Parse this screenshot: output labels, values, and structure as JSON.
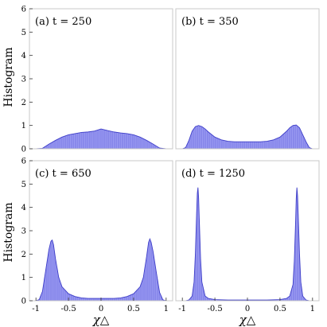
{
  "figure": {
    "ylabel": "Histogram",
    "xlabel": "χ△"
  },
  "chart_data": [
    {
      "type": "area",
      "panel_label": "(a) t = 250",
      "ylabel": "Histogram",
      "xlabel": "",
      "xlim": [
        -1.1,
        1.1
      ],
      "ylim": [
        0,
        6
      ],
      "xticks": [],
      "yticks": [
        0,
        1,
        2,
        3,
        4,
        5,
        6
      ],
      "x": [
        -1.0,
        -0.9,
        -0.8,
        -0.7,
        -0.6,
        -0.5,
        -0.4,
        -0.3,
        -0.2,
        -0.1,
        0.0,
        0.1,
        0.2,
        0.3,
        0.4,
        0.5,
        0.6,
        0.7,
        0.8,
        0.9,
        1.0
      ],
      "y": [
        0.0,
        0.02,
        0.2,
        0.36,
        0.5,
        0.6,
        0.65,
        0.7,
        0.72,
        0.76,
        0.85,
        0.78,
        0.72,
        0.68,
        0.65,
        0.6,
        0.5,
        0.36,
        0.2,
        0.03,
        0.0
      ]
    },
    {
      "type": "area",
      "panel_label": "(b) t = 350",
      "ylabel": "",
      "xlabel": "",
      "xlim": [
        -1.1,
        1.1
      ],
      "ylim": [
        0,
        6
      ],
      "xticks": [],
      "yticks": [],
      "x": [
        -1.0,
        -0.95,
        -0.9,
        -0.85,
        -0.8,
        -0.75,
        -0.7,
        -0.65,
        -0.6,
        -0.5,
        -0.4,
        -0.3,
        -0.2,
        -0.1,
        0.0,
        0.1,
        0.2,
        0.3,
        0.4,
        0.5,
        0.6,
        0.65,
        0.7,
        0.75,
        0.8,
        0.85,
        0.9,
        0.95,
        1.0
      ],
      "y": [
        0.0,
        0.05,
        0.35,
        0.75,
        0.95,
        1.0,
        0.95,
        0.85,
        0.72,
        0.5,
        0.38,
        0.32,
        0.3,
        0.3,
        0.3,
        0.3,
        0.3,
        0.32,
        0.38,
        0.5,
        0.75,
        0.9,
        1.0,
        1.02,
        0.9,
        0.6,
        0.3,
        0.05,
        0.0
      ]
    },
    {
      "type": "area",
      "panel_label": "(c) t = 650",
      "ylabel": "Histogram",
      "xlabel": "χ△",
      "xlim": [
        -1.1,
        1.1
      ],
      "ylim": [
        0,
        6
      ],
      "xticks": [
        -1,
        -0.5,
        0,
        0.5,
        1
      ],
      "xticklabels": [
        "-1",
        "-0.5",
        "0",
        "0.5",
        "1"
      ],
      "yticks": [
        0,
        1,
        2,
        3,
        4,
        5,
        6
      ],
      "x": [
        -1.0,
        -0.95,
        -0.9,
        -0.85,
        -0.8,
        -0.77,
        -0.75,
        -0.73,
        -0.7,
        -0.65,
        -0.6,
        -0.5,
        -0.4,
        -0.3,
        -0.2,
        -0.1,
        0.0,
        0.1,
        0.2,
        0.3,
        0.4,
        0.5,
        0.6,
        0.65,
        0.7,
        0.73,
        0.75,
        0.77,
        0.8,
        0.85,
        0.9,
        0.95,
        1.0
      ],
      "y": [
        0.0,
        0.05,
        0.4,
        1.3,
        2.2,
        2.55,
        2.6,
        2.4,
        1.8,
        1.0,
        0.6,
        0.3,
        0.18,
        0.12,
        0.1,
        0.1,
        0.1,
        0.1,
        0.1,
        0.12,
        0.18,
        0.3,
        0.6,
        1.0,
        1.9,
        2.5,
        2.65,
        2.5,
        2.1,
        1.2,
        0.35,
        0.04,
        0.0
      ]
    },
    {
      "type": "area",
      "panel_label": "(d) t = 1250",
      "ylabel": "",
      "xlabel": "χ△",
      "xlim": [
        -1.1,
        1.1
      ],
      "ylim": [
        0,
        6
      ],
      "xticks": [
        -1,
        -0.5,
        0,
        0.5,
        1
      ],
      "xticklabels": [
        "-1",
        "-0.5",
        "0",
        "0.5",
        "1"
      ],
      "yticks": [],
      "x": [
        -1.0,
        -0.95,
        -0.9,
        -0.85,
        -0.82,
        -0.8,
        -0.78,
        -0.77,
        -0.76,
        -0.75,
        -0.74,
        -0.72,
        -0.7,
        -0.65,
        -0.6,
        -0.5,
        -0.3,
        0.0,
        0.3,
        0.5,
        0.6,
        0.65,
        0.7,
        0.72,
        0.74,
        0.75,
        0.76,
        0.77,
        0.78,
        0.8,
        0.82,
        0.85,
        0.9,
        0.95,
        1.0
      ],
      "y": [
        0.0,
        0.0,
        0.03,
        0.2,
        0.8,
        2.0,
        3.8,
        4.6,
        4.85,
        4.4,
        3.5,
        1.8,
        0.8,
        0.2,
        0.1,
        0.05,
        0.03,
        0.03,
        0.03,
        0.05,
        0.1,
        0.2,
        0.7,
        1.7,
        3.4,
        4.4,
        4.85,
        4.5,
        3.7,
        2.0,
        0.8,
        0.2,
        0.03,
        0.0,
        0.0
      ]
    }
  ]
}
